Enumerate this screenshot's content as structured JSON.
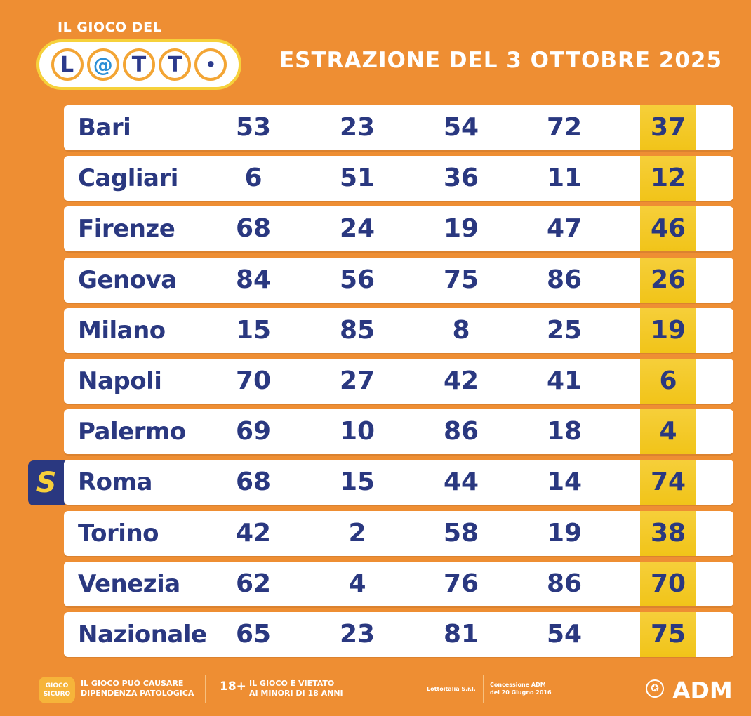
{
  "header": {
    "logo_top": "IL GIOCO DEL",
    "logo_letters": [
      "L",
      "@",
      "T",
      "T",
      "•"
    ],
    "title": "ESTRAZIONE DEL 3 OTTOBRE 2025"
  },
  "table": {
    "rows": [
      {
        "city": "Bari",
        "numbers": [
          "53",
          "23",
          "54",
          "72"
        ],
        "extra": "37"
      },
      {
        "city": "Cagliari",
        "numbers": [
          "6",
          "51",
          "36",
          "11"
        ],
        "extra": "12"
      },
      {
        "city": "Firenze",
        "numbers": [
          "68",
          "24",
          "19",
          "47"
        ],
        "extra": "46"
      },
      {
        "city": "Genova",
        "numbers": [
          "84",
          "56",
          "75",
          "86"
        ],
        "extra": "26"
      },
      {
        "city": "Milano",
        "numbers": [
          "15",
          "85",
          "8",
          "25"
        ],
        "extra": "19"
      },
      {
        "city": "Napoli",
        "numbers": [
          "70",
          "27",
          "42",
          "41"
        ],
        "extra": "6"
      },
      {
        "city": "Palermo",
        "numbers": [
          "69",
          "10",
          "86",
          "18"
        ],
        "extra": "4"
      },
      {
        "city": "Roma",
        "numbers": [
          "68",
          "15",
          "44",
          "14"
        ],
        "extra": "74"
      },
      {
        "city": "Torino",
        "numbers": [
          "42",
          "2",
          "58",
          "19"
        ],
        "extra": "38"
      },
      {
        "city": "Venezia",
        "numbers": [
          "62",
          "4",
          "76",
          "86"
        ],
        "extra": "70"
      },
      {
        "city": "Nazionale",
        "numbers": [
          "65",
          "23",
          "81",
          "54"
        ],
        "extra": "75"
      }
    ],
    "badge_letter": "S"
  },
  "footer": {
    "warning_line1": "IL GIOCO PUÒ CAUSARE",
    "warning_line2": "DIPENDENZA PATOLOGICA",
    "age": "18+",
    "age_line1": "IL GIOCO È VIETATO",
    "age_line2": "AI MINORI DI 18 ANNI",
    "company": "Lottoitalia S.r.l.",
    "concession_line1": "Concessione ADM",
    "concession_line2": "del 20 Giugno 2016",
    "regulator": "ADM"
  },
  "colors": {
    "background": "#ee8e33",
    "text_blue": "#2a3880",
    "extra_yellow": "#f6cf3a"
  }
}
